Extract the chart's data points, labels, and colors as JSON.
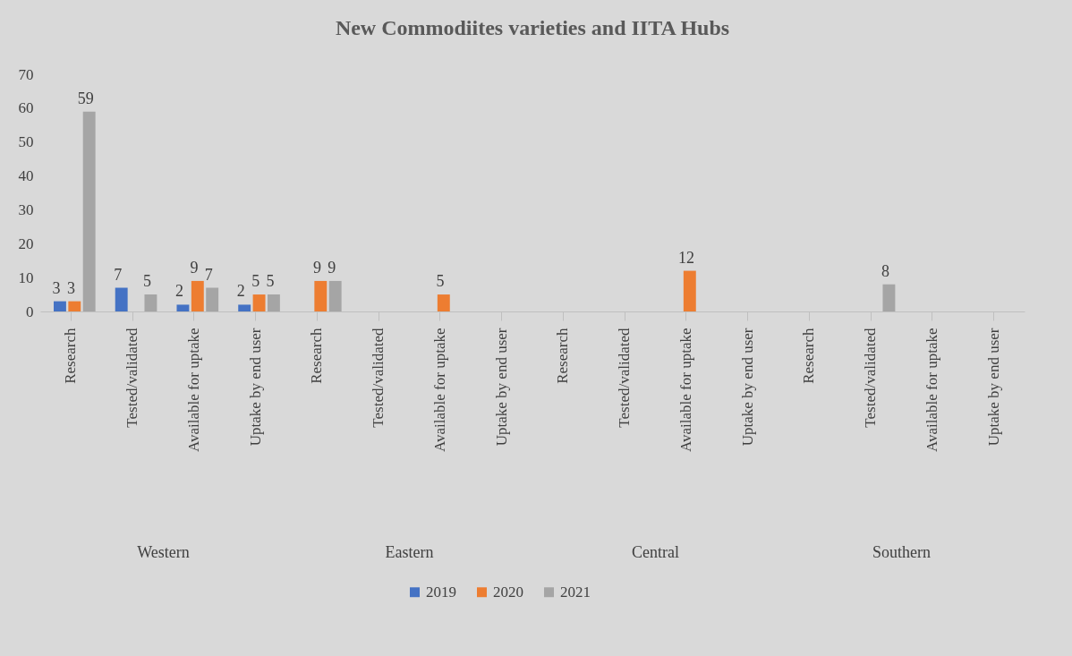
{
  "chart_data": {
    "type": "bar",
    "title": "New Commodiites varieties and IITA Hubs",
    "categories": [
      "Research",
      "Tested/validated",
      "Available for uptake",
      "Uptake by end user",
      "Research",
      "Tested/validated",
      "Available for uptake",
      "Uptake by end user",
      "Research",
      "Tested/validated",
      "Available for uptake",
      "Uptake by end user",
      "Research",
      "Tested/validated",
      "Available for uptake",
      "Uptake by end user"
    ],
    "series": [
      {
        "name": "2019",
        "color": "#4472c4",
        "values": [
          3,
          7,
          2,
          2,
          null,
          null,
          null,
          null,
          null,
          null,
          null,
          null,
          null,
          null,
          null,
          null
        ]
      },
      {
        "name": "2020",
        "color": "#ed7d31",
        "values": [
          3,
          null,
          9,
          5,
          9,
          null,
          5,
          null,
          null,
          null,
          12,
          null,
          null,
          null,
          null,
          null
        ]
      },
      {
        "name": "2021",
        "color": "#a5a5a5",
        "values": [
          59,
          5,
          7,
          5,
          9,
          null,
          null,
          null,
          null,
          null,
          null,
          null,
          null,
          8,
          null,
          null
        ]
      }
    ],
    "annotations": [
      "Western",
      "Eastern",
      "Central",
      "Southern"
    ],
    "ylim": [
      0,
      70
    ],
    "yticks": [
      0,
      10,
      20,
      30,
      40,
      50,
      60,
      70
    ],
    "data_labels": true,
    "legend": "bottom"
  }
}
